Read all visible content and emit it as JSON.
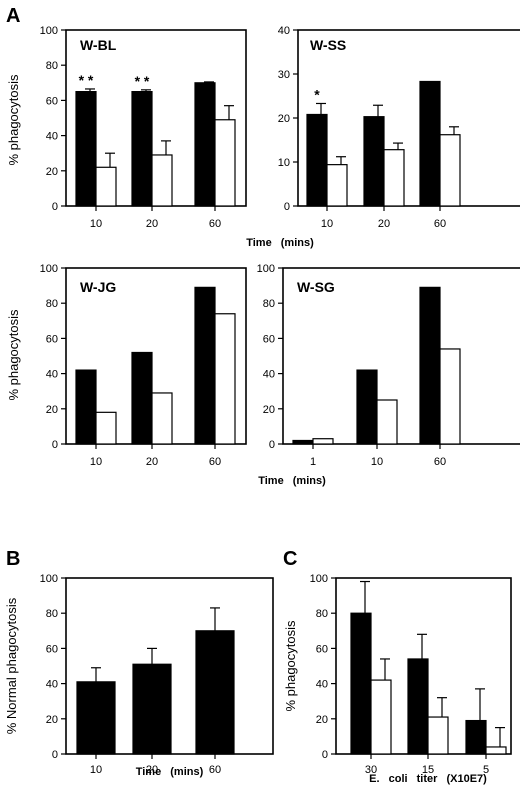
{
  "figure": {
    "panel_labels": {
      "A": "A",
      "B": "B",
      "C": "C"
    },
    "panelA": {
      "ylabel": "% phagocytosis",
      "xlabel": "Time (mins)"
    }
  },
  "chart_data": [
    {
      "type": "bar",
      "title": "W-BL",
      "categories": [
        "10",
        "20",
        "60"
      ],
      "series": [
        {
          "values": [
            65,
            65,
            70
          ],
          "errors": [
            1.5,
            1,
            0.5
          ],
          "fill": "#000000"
        },
        {
          "values": [
            22,
            29,
            49
          ],
          "errors": [
            8,
            8,
            8
          ],
          "fill": "#ffffff"
        }
      ],
      "ylim": [
        0,
        100
      ],
      "yticks": [
        0,
        20,
        40,
        60,
        80,
        100
      ],
      "ylabel": "% phagocytosis",
      "xlabel": "",
      "significance": [
        "* *",
        "* *",
        ""
      ]
    },
    {
      "type": "bar",
      "title": "W-SS",
      "categories": [
        "10",
        "20",
        "60"
      ],
      "series": [
        {
          "values": [
            20.8,
            20.3,
            28.3
          ],
          "errors": [
            2.5,
            2.6,
            0
          ],
          "fill": "#000000"
        },
        {
          "values": [
            9.4,
            12.8,
            16.2
          ],
          "errors": [
            1.8,
            1.5,
            1.8
          ],
          "fill": "#ffffff"
        }
      ],
      "ylim": [
        0,
        40
      ],
      "yticks": [
        0,
        10,
        20,
        30,
        40
      ],
      "ylabel": "",
      "xlabel": "",
      "significance": [
        "*",
        "",
        ""
      ]
    },
    {
      "type": "bar",
      "title": "W-JG",
      "categories": [
        "10",
        "20",
        "60"
      ],
      "series": [
        {
          "values": [
            42,
            52,
            89
          ],
          "fill": "#000000"
        },
        {
          "values": [
            18,
            29,
            74
          ],
          "fill": "#ffffff"
        }
      ],
      "ylim": [
        0,
        100
      ],
      "yticks": [
        0,
        20,
        40,
        60,
        80,
        100
      ],
      "ylabel": "% phagocytosis",
      "xlabel": ""
    },
    {
      "type": "bar",
      "title": "W-SG",
      "categories": [
        "1",
        "10",
        "60"
      ],
      "series": [
        {
          "values": [
            2,
            42,
            89
          ],
          "fill": "#000000"
        },
        {
          "values": [
            3,
            25,
            54
          ],
          "fill": "#ffffff"
        }
      ],
      "ylim": [
        0,
        100
      ],
      "yticks": [
        0,
        20,
        40,
        60,
        80,
        100
      ],
      "ylabel": "",
      "xlabel": ""
    },
    {
      "type": "bar",
      "title": "",
      "categories": [
        "10",
        "20",
        "60"
      ],
      "series": [
        {
          "values": [
            41,
            51,
            70
          ],
          "errors": [
            8,
            9,
            13
          ],
          "fill": "#000000"
        }
      ],
      "ylim": [
        0,
        100
      ],
      "yticks": [
        0,
        20,
        40,
        60,
        80,
        100
      ],
      "ylabel": "% Normal phagocytosis",
      "xlabel": "Time (mins)"
    },
    {
      "type": "bar",
      "title": "",
      "categories": [
        "30",
        "15",
        "5"
      ],
      "series": [
        {
          "values": [
            80,
            54,
            19
          ],
          "errors": [
            18,
            14,
            18
          ],
          "fill": "#000000"
        },
        {
          "values": [
            42,
            21,
            4
          ],
          "errors": [
            12,
            11,
            11
          ],
          "fill": "#ffffff"
        }
      ],
      "ylim": [
        0,
        100
      ],
      "yticks": [
        0,
        20,
        40,
        60,
        80,
        100
      ],
      "ylabel": "% phagocytosis",
      "xlabel": "E. coli titer (X10E7)"
    }
  ]
}
